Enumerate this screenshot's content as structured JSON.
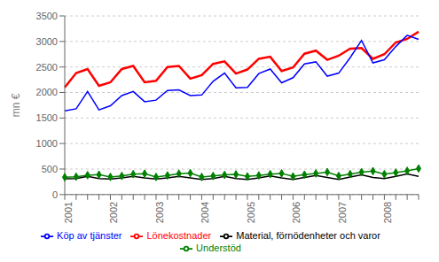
{
  "chart_data": {
    "type": "line",
    "ylabel": "mn €",
    "categories": [
      "2001",
      null,
      null,
      null,
      "2002",
      null,
      null,
      null,
      "2003",
      null,
      null,
      null,
      "2004",
      null,
      null,
      null,
      "2005",
      null,
      null,
      null,
      "2006",
      null,
      null,
      null,
      "2007",
      null,
      null,
      null,
      "2008",
      null,
      null,
      null
    ],
    "series": [
      {
        "name": "Lönekostnader",
        "color": "#FF0000",
        "values": [
          2100,
          2380,
          2460,
          2130,
          2200,
          2460,
          2520,
          2200,
          2230,
          2500,
          2520,
          2270,
          2340,
          2560,
          2610,
          2370,
          2450,
          2660,
          2700,
          2420,
          2490,
          2760,
          2820,
          2640,
          2720,
          2860,
          2870,
          2660,
          2750,
          2980,
          3050,
          3190
        ]
      },
      {
        "name": "Köp av tjänster",
        "color": "#0000FF",
        "values": [
          1640,
          1680,
          2020,
          1660,
          1740,
          1940,
          2020,
          1820,
          1850,
          2040,
          2050,
          1940,
          1950,
          2220,
          2380,
          2090,
          2100,
          2370,
          2460,
          2190,
          2290,
          2560,
          2600,
          2320,
          2380,
          2680,
          3020,
          2580,
          2640,
          2900,
          3120,
          3040
        ]
      },
      {
        "name": "Understöd",
        "color": "#008000",
        "marker": "diamond",
        "values": [
          340,
          350,
          380,
          390,
          345,
          365,
          400,
          410,
          345,
          375,
          410,
          420,
          345,
          365,
          385,
          395,
          355,
          375,
          400,
          415,
          355,
          390,
          415,
          440,
          365,
          400,
          440,
          460,
          400,
          430,
          465,
          510
        ]
      },
      {
        "name": "Material, förnödenheter och varor",
        "color": "#000000",
        "values": [
          310,
          315,
          355,
          315,
          305,
          325,
          355,
          325,
          305,
          325,
          355,
          325,
          295,
          315,
          355,
          315,
          295,
          325,
          365,
          325,
          295,
          335,
          375,
          335,
          295,
          345,
          385,
          335,
          315,
          355,
          405,
          355
        ]
      }
    ],
    "ylim": [
      0,
      3500
    ],
    "yticks": [
      0,
      500,
      1000,
      1500,
      2000,
      2500,
      3000,
      3500
    ],
    "grid": true,
    "legend": "bottom"
  }
}
